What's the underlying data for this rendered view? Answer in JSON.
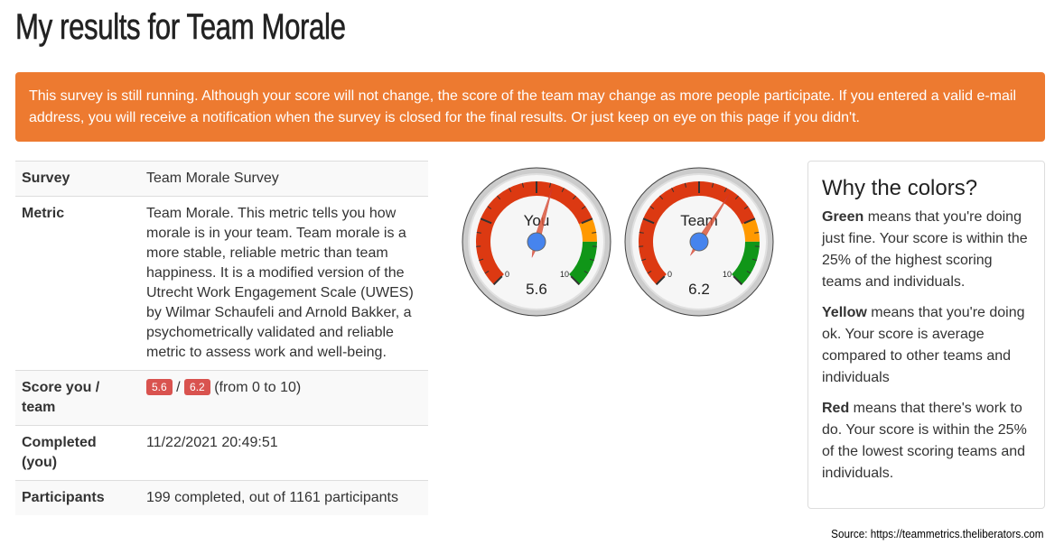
{
  "title": "My results for Team Morale",
  "alert": "This survey is still running. Although your score will not change, the score of the team may change as more people participate. If you entered a valid e-mail address, you will receive a notification when the survey is closed for the final results. Or just keep on eye on this page if you didn't.",
  "table": {
    "survey_label": "Survey",
    "survey_value": "Team Morale Survey",
    "metric_label": "Metric",
    "metric_value": "Team Morale. This metric tells you how morale is in your team. Team morale is a more stable, reliable metric than team happiness. It is a modified version of the Utrecht Work Engagement Scale (UWES) by Wilmar Schaufeli and Arnold Bakker, a psychometrically validated and reliable metric to assess work and well-being.",
    "score_label": "Score you / team",
    "score_you": "5.6",
    "score_sep": "/",
    "score_team": "6.2",
    "score_range": "(from 0 to 10)",
    "completed_label": "Completed (you)",
    "completed_value": "11/22/2021 20:49:51",
    "participants_label": "Participants",
    "participants_value": "199 completed, out of 1161 participants"
  },
  "gauges": [
    {
      "label": "You",
      "value": 5.6,
      "value_text": "5.6",
      "min_label": "0",
      "max_label": "10"
    },
    {
      "label": "Team",
      "value": 6.2,
      "value_text": "6.2",
      "min_label": "0",
      "max_label": "10"
    }
  ],
  "gauge_bands": [
    {
      "from": 0,
      "to": 7.5,
      "color": "#dc3912"
    },
    {
      "from": 7.5,
      "to": 8.33,
      "color": "#ff9900"
    },
    {
      "from": 8.33,
      "to": 10,
      "color": "#109618"
    }
  ],
  "panel": {
    "title": "Why the colors?",
    "green_word": "Green",
    "green_text": " means that you're doing just fine. Your score is within the 25% of the highest scoring teams and individuals.",
    "yellow_word": "Yellow",
    "yellow_text": " means that you're doing ok. Your score is average compared to other teams and individuals",
    "red_word": "Red",
    "red_text": " means that there's work to do. Your score is within the 25% of the lowest scoring teams and individuals."
  },
  "source": "Source: https://teammetrics.theliberators.com"
}
